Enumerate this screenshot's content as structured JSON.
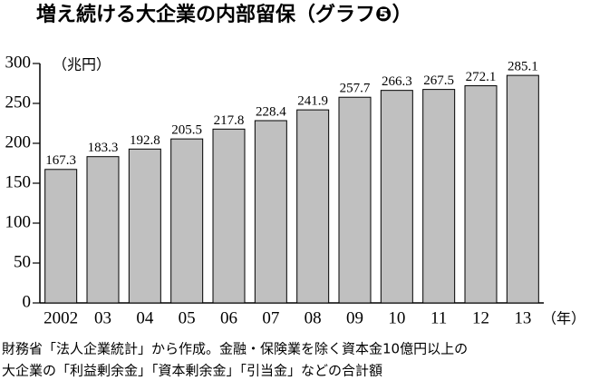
{
  "chart_data": {
    "type": "bar",
    "title": "増え続ける大企業の内部留保（グラフ❺）",
    "y_label": "（兆円）",
    "x_label": "（年）",
    "categories": [
      "2002",
      "03",
      "04",
      "05",
      "06",
      "07",
      "08",
      "09",
      "10",
      "11",
      "12",
      "13"
    ],
    "values": [
      167.3,
      183.3,
      192.8,
      205.5,
      217.8,
      228.4,
      241.9,
      257.7,
      266.3,
      267.5,
      272.1,
      285.1
    ],
    "color": "#c0c0c0",
    "ylim": [
      0,
      300
    ],
    "yticks": [
      0,
      50,
      100,
      150,
      200,
      250,
      300
    ],
    "notes": [
      "財務省「法人企業統計」から作成。金融・保険業を除く資本金10億円以上の",
      "大企業の「利益剰余金」「資本剰余金」「引当金」などの合計額"
    ]
  }
}
